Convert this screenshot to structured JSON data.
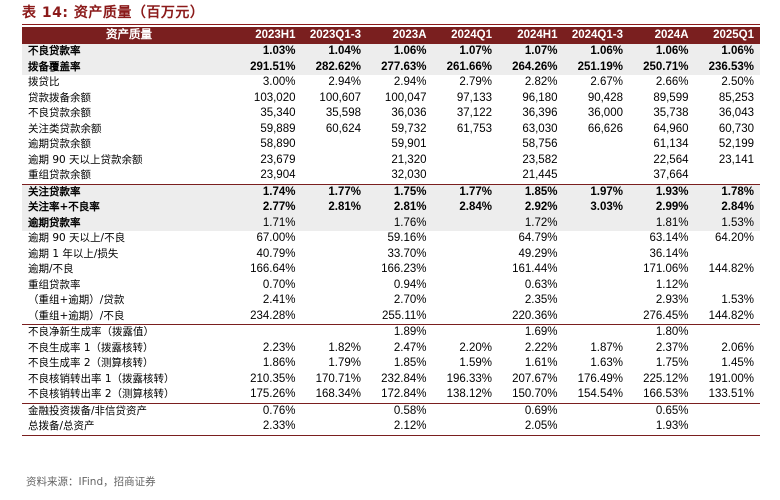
{
  "title": "表 14: 资产质量（百万元）",
  "headers": [
    "资产质量",
    "2023H1",
    "2023Q1-3",
    "2023A",
    "2024Q1",
    "2024H1",
    "2024Q1-3",
    "2024A",
    "2025Q1"
  ],
  "rows": [
    {
      "label": "不良贷款率",
      "values": [
        "1.03%",
        "1.04%",
        "1.06%",
        "1.07%",
        "1.07%",
        "1.06%",
        "1.06%",
        "1.06%"
      ],
      "highlight": true
    },
    {
      "label": "拨备覆盖率",
      "values": [
        "291.51%",
        "282.62%",
        "277.63%",
        "261.66%",
        "264.26%",
        "251.19%",
        "250.71%",
        "236.53%"
      ],
      "highlight": true
    },
    {
      "label": "拨贷比",
      "values": [
        "3.00%",
        "2.94%",
        "2.94%",
        "2.79%",
        "2.82%",
        "2.67%",
        "2.66%",
        "2.50%"
      ]
    },
    {
      "label": "贷款拨备余额",
      "values": [
        "103,020",
        "100,607",
        "100,047",
        "97,133",
        "96,180",
        "90,428",
        "89,599",
        "85,253"
      ]
    },
    {
      "label": "不良贷款余额",
      "values": [
        "35,340",
        "35,598",
        "36,036",
        "37,122",
        "36,396",
        "36,000",
        "35,738",
        "36,043"
      ]
    },
    {
      "label": "关注类贷款余额",
      "values": [
        "59,889",
        "60,624",
        "59,732",
        "61,753",
        "63,030",
        "66,626",
        "64,960",
        "60,730"
      ]
    },
    {
      "label": "逾期贷款余额",
      "values": [
        "58,890",
        "",
        "59,901",
        "",
        "58,756",
        "",
        "61,134",
        "52,199"
      ]
    },
    {
      "label": "逾期 90 天以上贷款余额",
      "values": [
        "23,679",
        "",
        "21,320",
        "",
        "23,582",
        "",
        "22,564",
        "23,141"
      ]
    },
    {
      "label": "重组贷款余额",
      "values": [
        "23,904",
        "",
        "32,030",
        "",
        "21,445",
        "",
        "37,664",
        ""
      ]
    },
    {
      "label": "关注贷款率",
      "values": [
        "1.74%",
        "1.77%",
        "1.75%",
        "1.77%",
        "1.85%",
        "1.97%",
        "1.93%",
        "1.78%"
      ],
      "highlight": true,
      "sep": true
    },
    {
      "label": "关注率+不良率",
      "values": [
        "2.77%",
        "2.81%",
        "2.81%",
        "2.84%",
        "2.92%",
        "3.03%",
        "2.99%",
        "2.84%"
      ],
      "highlight": true
    },
    {
      "label": "逾期贷款率",
      "values": [
        "1.71%",
        "",
        "1.76%",
        "",
        "1.72%",
        "",
        "1.81%",
        "1.53%"
      ],
      "highlight": true,
      "boldLabelOnly": true
    },
    {
      "label": "逾期 90 天以上/不良",
      "values": [
        "67.00%",
        "",
        "59.16%",
        "",
        "64.79%",
        "",
        "63.14%",
        "64.20%"
      ]
    },
    {
      "label": "逾期 1 年以上/损失",
      "values": [
        "40.79%",
        "",
        "33.70%",
        "",
        "49.29%",
        "",
        "36.14%",
        ""
      ]
    },
    {
      "label": "逾期/不良",
      "values": [
        "166.64%",
        "",
        "166.23%",
        "",
        "161.44%",
        "",
        "171.06%",
        "144.82%"
      ]
    },
    {
      "label": "重组贷款率",
      "values": [
        "0.70%",
        "",
        "0.94%",
        "",
        "0.63%",
        "",
        "1.12%",
        ""
      ]
    },
    {
      "label": "（重组+逾期）/贷款",
      "values": [
        "2.41%",
        "",
        "2.70%",
        "",
        "2.35%",
        "",
        "2.93%",
        "1.53%"
      ]
    },
    {
      "label": "（重组+逾期）/不良",
      "values": [
        "234.28%",
        "",
        "255.11%",
        "",
        "220.36%",
        "",
        "276.45%",
        "144.82%"
      ]
    },
    {
      "label": "不良净新生成率（拨露值）",
      "values": [
        "",
        "",
        "1.89%",
        "",
        "1.69%",
        "",
        "1.80%",
        ""
      ],
      "sep": true
    },
    {
      "label": "不良生成率 1（拨露核转）",
      "values": [
        "2.23%",
        "1.82%",
        "2.47%",
        "2.20%",
        "2.22%",
        "1.87%",
        "2.37%",
        "2.06%"
      ]
    },
    {
      "label": "不良生成率 2（测算核转）",
      "values": [
        "1.86%",
        "1.79%",
        "1.85%",
        "1.59%",
        "1.61%",
        "1.63%",
        "1.75%",
        "1.45%"
      ]
    },
    {
      "label": "不良核销转出率 1（拨露核转）",
      "values": [
        "210.35%",
        "170.71%",
        "232.84%",
        "196.33%",
        "207.67%",
        "176.49%",
        "225.12%",
        "191.00%"
      ]
    },
    {
      "label": "不良核销转出率 2（测算核转）",
      "values": [
        "175.26%",
        "168.34%",
        "172.84%",
        "138.12%",
        "150.70%",
        "154.54%",
        "166.53%",
        "133.51%"
      ]
    },
    {
      "label": "金融投资拨备/非信贷资产",
      "values": [
        "0.76%",
        "",
        "0.58%",
        "",
        "0.69%",
        "",
        "0.65%",
        ""
      ],
      "sep": true
    },
    {
      "label": "总拨备/总资产",
      "values": [
        "2.33%",
        "",
        "2.12%",
        "",
        "2.05%",
        "",
        "1.93%",
        ""
      ],
      "last": true
    }
  ],
  "source": "资料来源：IFind，招商证券"
}
